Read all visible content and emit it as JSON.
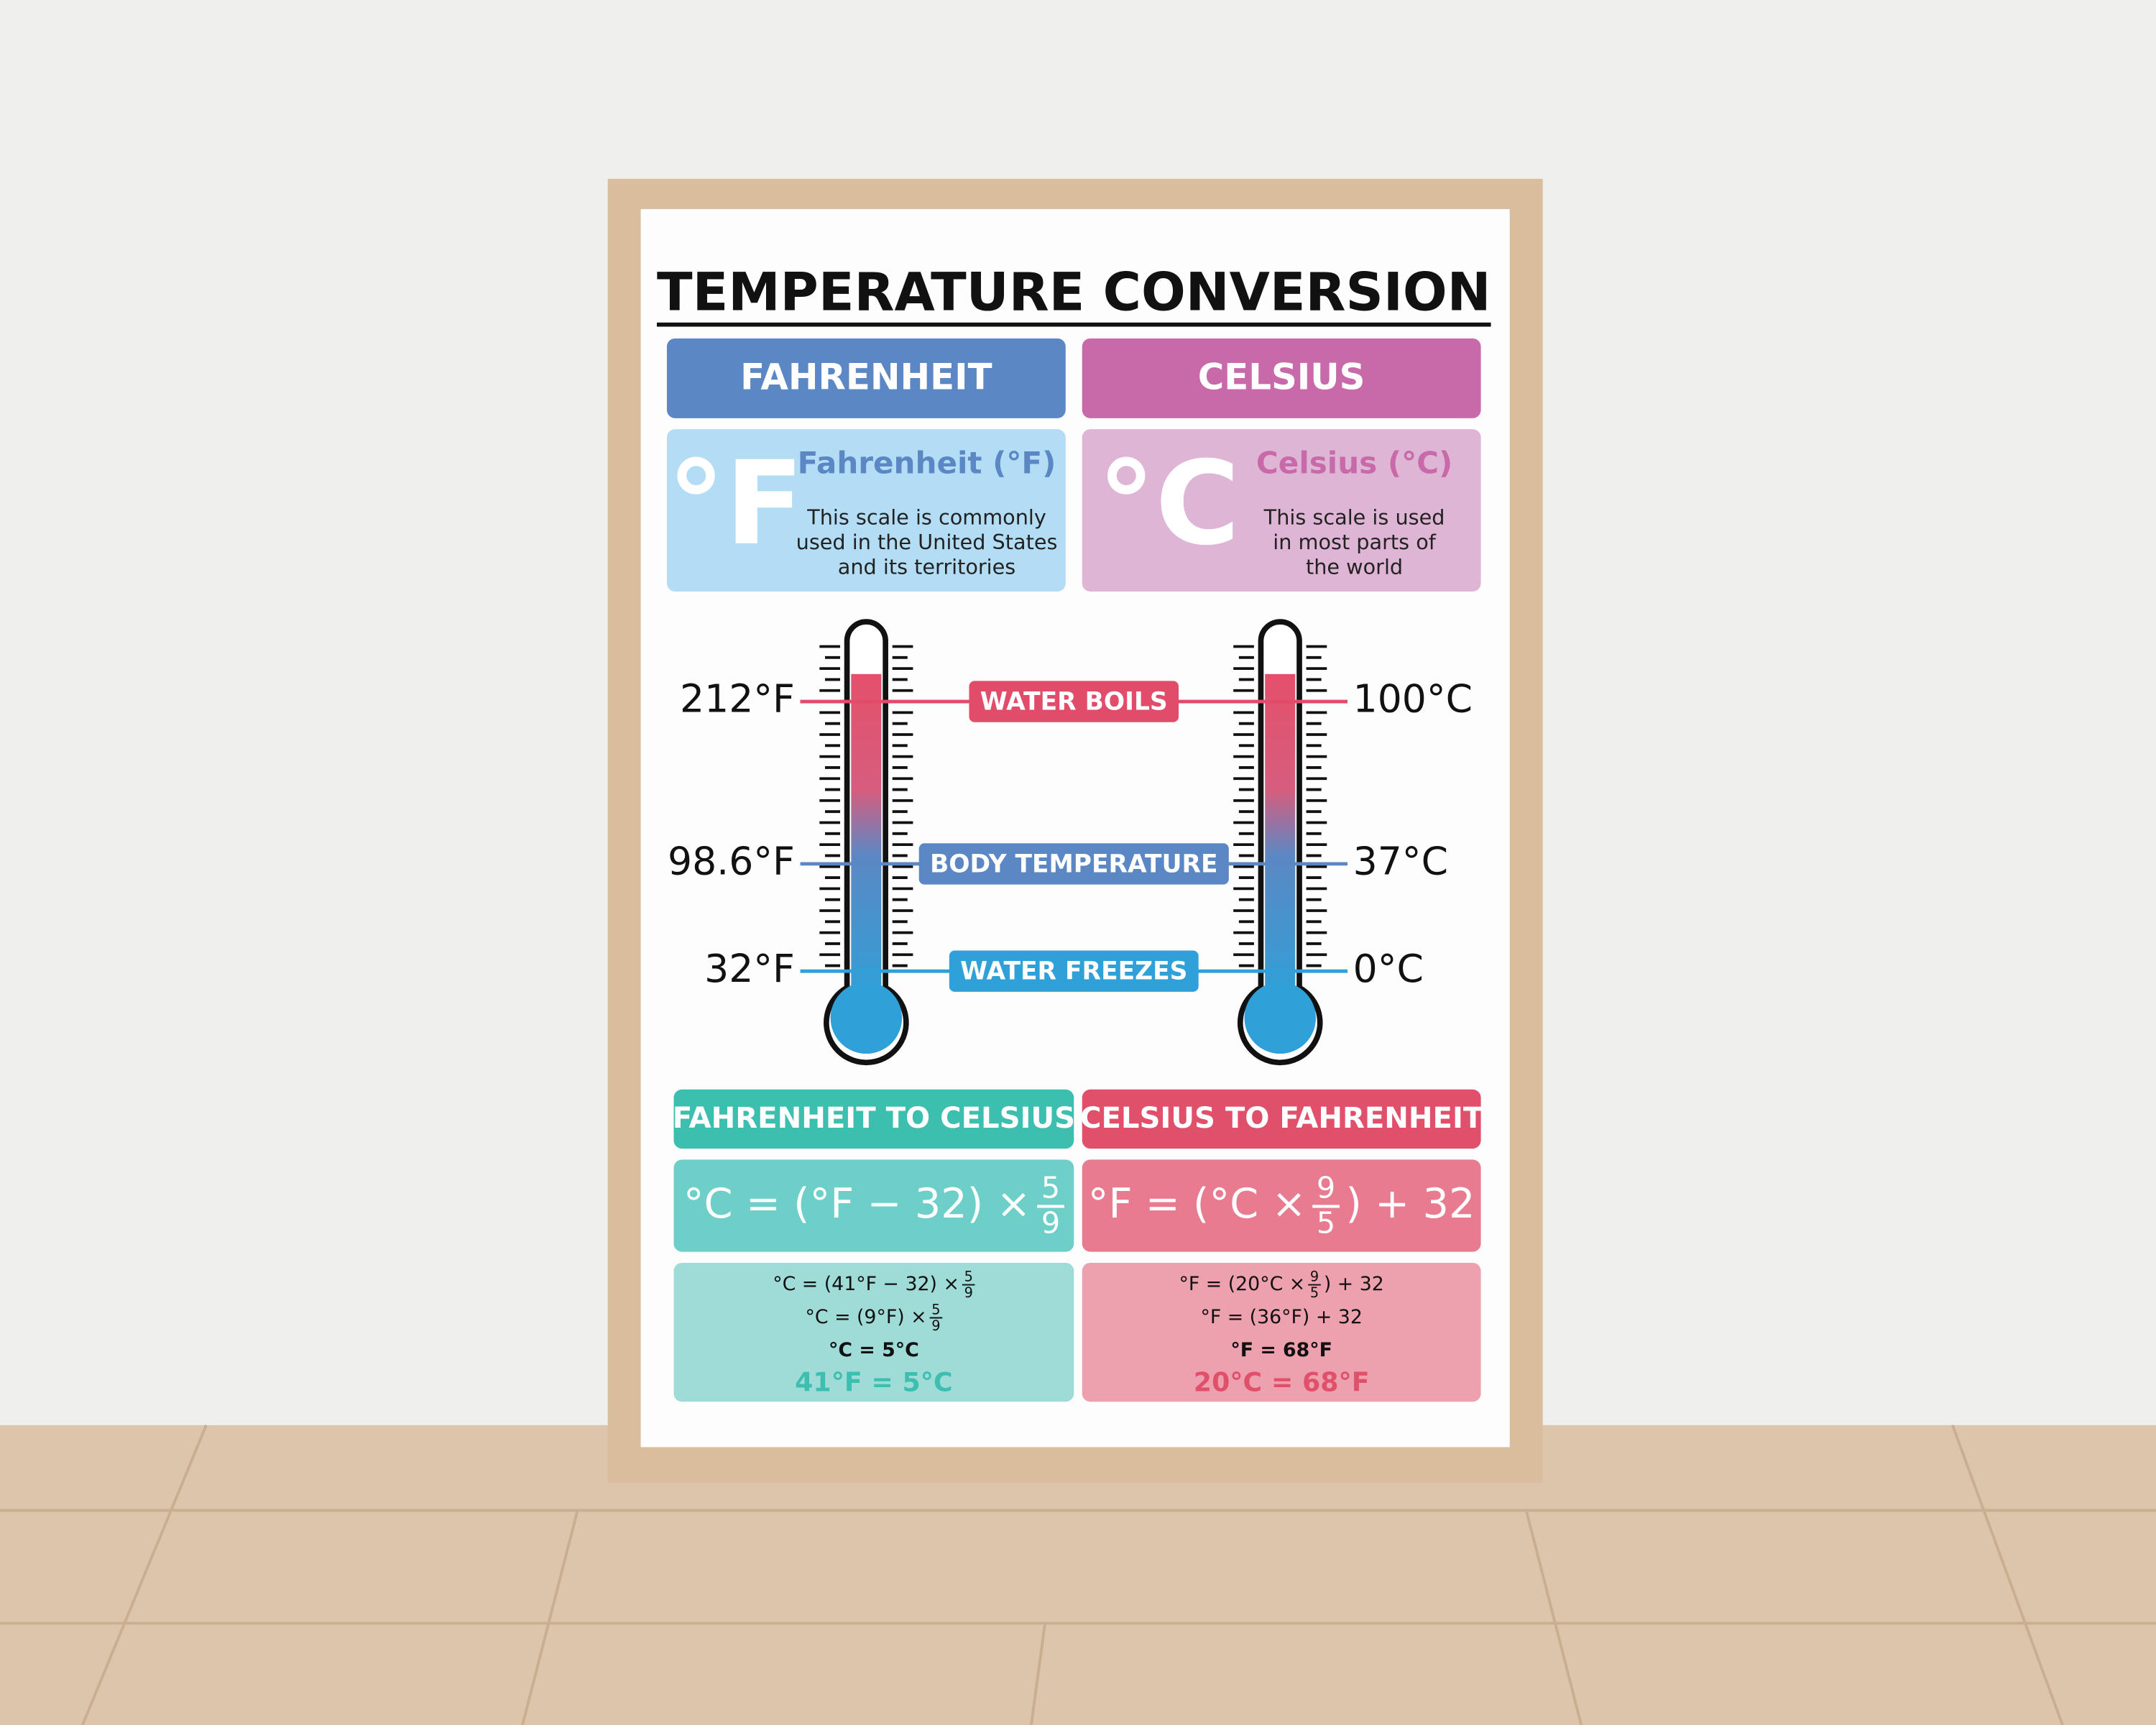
{
  "title": "TEMPERATURE CONVERSION",
  "scales": [
    {
      "header": "FAHRENHEIT",
      "symbol": "°F",
      "name": "Fahrenheit (°F)",
      "description": [
        "This scale is commonly",
        "used in the United States",
        "and its territories"
      ]
    },
    {
      "header": "CELSIUS",
      "symbol": "°C",
      "name": "Celsius (°C)",
      "description": [
        "This scale is used",
        "in most parts of",
        "the world"
      ]
    }
  ],
  "reference_points": [
    {
      "label": "WATER BOILS",
      "fahrenheit": "212°F",
      "celsius": "100°C"
    },
    {
      "label": "BODY TEMPERATURE",
      "fahrenheit": "98.6°F",
      "celsius": "37°C"
    },
    {
      "label": "WATER FREEZES",
      "fahrenheit": "32°F",
      "celsius": "0°C"
    }
  ],
  "conversions": [
    {
      "header": "FAHRENHEIT TO CELSIUS",
      "formula": {
        "before": "°C = (°F − 32) ×",
        "numerator": "5",
        "denominator": "9"
      },
      "example": [
        {
          "before": "°C = (41°F − 32) ×",
          "numerator": "5",
          "denominator": "9"
        },
        {
          "before": "°C = (9°F) ×",
          "numerator": "5",
          "denominator": "9"
        },
        {
          "before": "°C = 5°C"
        }
      ],
      "result": "41°F = 5°C"
    },
    {
      "header": "CELSIUS TO FAHRENHEIT",
      "formula": {
        "before": "°F = (°C ×",
        "numerator": "9",
        "denominator": "5",
        "after": ") + 32"
      },
      "example": [
        {
          "before": "°F = (20°C ×",
          "numerator": "9",
          "denominator": "5",
          "after": ") + 32"
        },
        {
          "before": "°F = (36°F) + 32"
        },
        {
          "before": "°F = 68°F"
        }
      ],
      "result": "20°C = 68°F"
    }
  ]
}
